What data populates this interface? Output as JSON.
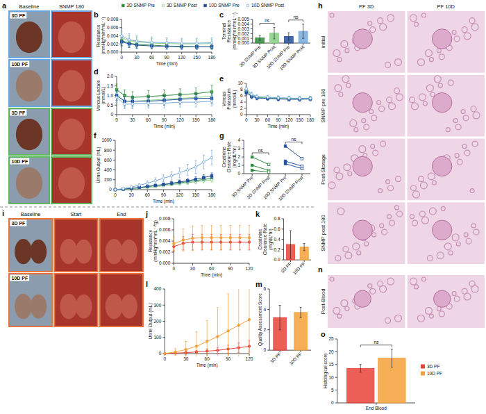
{
  "images": [
    {
      "panel_label": "a",
      "columns": [
        "Baseline",
        "SNMP 180"
      ],
      "rows": [
        "3D PF",
        "10D PF",
        "3D PF",
        "10D PF"
      ]
    },
    {
      "panel_label": "h",
      "columns": [
        "PF 3D",
        "PF 10D"
      ],
      "rows": [
        "initial",
        "SNMP pre 180",
        "Post-Storage",
        "SNMP post 180"
      ]
    },
    {
      "panel_label": "n",
      "rows": [
        "Post-Blood"
      ]
    },
    {
      "panel_label": "i",
      "columns": [
        "Baseline",
        "Start",
        "End"
      ],
      "rows": [
        "3D PF",
        "10D PF"
      ]
    }
  ],
  "chart_data": [
    {
      "panel_label": "b",
      "type": "line",
      "y_label": "Resistance (mmHg*min*mL⁻¹)",
      "x_label": "Time (min)",
      "x": [
        0,
        15,
        30,
        60,
        90,
        120,
        150,
        180
      ],
      "xlim": [
        0,
        180
      ],
      "xticks": [
        0,
        30,
        60,
        90,
        120,
        150,
        180
      ],
      "ylim": [
        0,
        0.008
      ],
      "yticks": [
        {
          "value": 0,
          "label": "0.000"
        },
        0.002,
        0.004,
        0.006,
        0.008
      ],
      "legend": "top",
      "series": [
        {
          "name": "3D SNMP Pre",
          "color": "#2e8b3e",
          "marker": "square",
          "values": [
            0.0028,
            0.0022,
            0.0019,
            0.0017,
            0.0015,
            0.0014,
            0.0013,
            0.0013
          ],
          "errors": [
            0.0012,
            0.001,
            0.0009,
            0.0008,
            0.0007,
            0.0007,
            0.0006,
            0.0006
          ]
        },
        {
          "name": "3D SNMP Post",
          "color": "#86cf86",
          "marker": "open-circle",
          "values": [
            0.0035,
            0.0028,
            0.0025,
            0.0022,
            0.0021,
            0.002,
            0.002,
            0.0021
          ],
          "errors": [
            0.0015,
            0.0013,
            0.0012,
            0.0011,
            0.0011,
            0.001,
            0.001,
            0.0011
          ]
        },
        {
          "name": "10D SNMP Pre",
          "color": "#25509e",
          "marker": "square",
          "values": [
            0.0025,
            0.002,
            0.0017,
            0.0015,
            0.0014,
            0.0013,
            0.0013,
            0.0013
          ],
          "errors": [
            0.001,
            0.0009,
            0.0008,
            0.0007,
            0.0007,
            0.0006,
            0.0006,
            0.0006
          ]
        },
        {
          "name": "10D SNMP Post",
          "color": "#76a9dd",
          "marker": "open-circle",
          "values": [
            0.004,
            0.003,
            0.0027,
            0.0024,
            0.0023,
            0.0022,
            0.0022,
            0.0023
          ],
          "errors": [
            0.0018,
            0.0015,
            0.0014,
            0.0013,
            0.0012,
            0.0012,
            0.0012,
            0.0012
          ]
        }
      ]
    },
    {
      "panel_label": "c",
      "type": "bar",
      "y_label": "Terminal Resistance (mmHg*min*mL⁻¹)",
      "categories": [
        "3D SNMP Pre",
        "3D SNMP Post",
        "10D SNMP Pre",
        "10D SNMP Post"
      ],
      "values": [
        0.0011,
        0.0021,
        0.0014,
        0.0025
      ],
      "errors": [
        0.0005,
        0.0012,
        0.0008,
        0.0015
      ],
      "colors": [
        "#2e8b3e",
        "#86cf86",
        "#25509e",
        "#76a9dd"
      ],
      "ylim": [
        0,
        0.005
      ],
      "yticks": [
        {
          "value": 0,
          "label": "0.000"
        },
        0.001,
        0.002,
        0.003,
        0.004,
        0.005
      ],
      "annotations": [
        {
          "text": "ns",
          "categories": [
            "3D SNMP Pre",
            "3D SNMP Post"
          ]
        },
        {
          "text": "ns",
          "categories": [
            "10D SNMP Pre",
            "10D SNMP Post"
          ]
        }
      ]
    },
    {
      "panel_label": "d",
      "type": "line",
      "y_label": "Venous Lactate (mmol/L)",
      "x_label": "Time (min)",
      "x": [
        0,
        15,
        30,
        60,
        90,
        120,
        150,
        180
      ],
      "xlim": [
        0,
        180
      ],
      "xticks": [
        0,
        30,
        60,
        90,
        120,
        150,
        180
      ],
      "ylim": [
        0,
        2
      ],
      "yticks": [
        0,
        0.5,
        {
          "value": 1,
          "label": "1.0"
        },
        1.5,
        {
          "value": 2,
          "label": "2.0"
        }
      ],
      "series": [
        {
          "color": "#2e8b3e",
          "marker": "square",
          "values": [
            1.3,
            1.0,
            0.9,
            0.95,
            1.0,
            1.05,
            1.1,
            1.2
          ],
          "errors": [
            0.3,
            0.3,
            0.3,
            0.3,
            0.3,
            0.3,
            0.3,
            0.35
          ]
        },
        {
          "color": "#86cf86",
          "marker": "open-circle",
          "values": [
            1.1,
            0.7,
            0.7,
            0.75,
            0.8,
            0.85,
            0.9,
            0.95
          ],
          "errors": [
            0.35,
            0.3,
            0.3,
            0.3,
            0.3,
            0.3,
            0.3,
            0.3
          ]
        },
        {
          "color": "#25509e",
          "marker": "square",
          "values": [
            1.0,
            0.7,
            0.7,
            0.7,
            0.75,
            0.8,
            0.85,
            0.85
          ],
          "errors": [
            0.25,
            0.25,
            0.25,
            0.25,
            0.25,
            0.25,
            0.25,
            0.25
          ]
        },
        {
          "color": "#76a9dd",
          "marker": "open-circle",
          "values": [
            0.9,
            0.55,
            0.55,
            0.6,
            0.6,
            0.65,
            0.65,
            0.7
          ],
          "errors": [
            0.25,
            0.25,
            0.25,
            0.25,
            0.25,
            0.25,
            0.25,
            0.25
          ]
        }
      ]
    },
    {
      "panel_label": "e",
      "type": "line",
      "y_label": "Venous Potassium (mmol/L)",
      "x_label": "Time (min)",
      "x": [
        0,
        15,
        30,
        60,
        90,
        120,
        150,
        180
      ],
      "xlim": [
        0,
        180
      ],
      "xticks": [
        0,
        30,
        60,
        90,
        120,
        150,
        180
      ],
      "ylim": [
        0,
        10
      ],
      "yticks": [
        0,
        2,
        4,
        6,
        8,
        10
      ],
      "series": [
        {
          "color": "#2e8b3e",
          "marker": "square",
          "values": [
            7.5,
            6.0,
            5.5,
            5.3,
            5.2,
            5.1,
            5.0,
            5.1
          ],
          "errors": [
            0.8,
            0.7,
            0.6,
            0.6,
            0.6,
            0.6,
            0.6,
            0.6
          ]
        },
        {
          "color": "#86cf86",
          "marker": "open-circle",
          "values": [
            8.0,
            6.2,
            5.6,
            5.4,
            5.3,
            5.2,
            5.2,
            5.3
          ],
          "errors": [
            0.8,
            0.7,
            0.6,
            0.6,
            0.6,
            0.6,
            0.6,
            0.6
          ]
        },
        {
          "color": "#25509e",
          "marker": "square",
          "values": [
            7.0,
            5.8,
            5.3,
            5.2,
            5.0,
            4.9,
            4.9,
            5.0
          ],
          "errors": [
            0.8,
            0.7,
            0.6,
            0.6,
            0.6,
            0.6,
            0.6,
            0.6
          ]
        },
        {
          "color": "#76a9dd",
          "marker": "open-circle",
          "values": [
            8.3,
            6.5,
            5.8,
            5.6,
            5.4,
            5.3,
            5.2,
            5.2
          ],
          "errors": [
            0.8,
            0.7,
            0.6,
            0.6,
            0.6,
            0.6,
            0.6,
            0.6
          ]
        }
      ]
    },
    {
      "panel_label": "f",
      "type": "line",
      "y_label": "Urine Output (mL)",
      "x_label": "Time (min)",
      "x": [
        0,
        15,
        30,
        45,
        60,
        75,
        90,
        105,
        120,
        135,
        150,
        165,
        180
      ],
      "xlim": [
        0,
        180
      ],
      "xticks": [
        0,
        30,
        60,
        90,
        120,
        150,
        180
      ],
      "ylim": [
        0,
        1000
      ],
      "yticks": [
        0,
        200,
        400,
        600,
        800,
        1000
      ],
      "series": [
        {
          "color": "#2e8b3e",
          "marker": "square",
          "values": [
            0,
            10,
            25,
            40,
            60,
            80,
            100,
            120,
            140,
            160,
            185,
            205,
            230
          ],
          "errors": [
            0,
            5,
            8,
            12,
            16,
            20,
            24,
            28,
            32,
            36,
            40,
            44,
            48
          ]
        },
        {
          "color": "#86cf86",
          "marker": "open-circle",
          "values": [
            0,
            8,
            18,
            30,
            45,
            60,
            80,
            100,
            120,
            140,
            160,
            180,
            200
          ],
          "errors": [
            0,
            4,
            7,
            10,
            14,
            18,
            22,
            26,
            30,
            34,
            38,
            42,
            46
          ]
        },
        {
          "color": "#25509e",
          "marker": "square",
          "values": [
            0,
            10,
            25,
            45,
            65,
            85,
            105,
            130,
            155,
            180,
            210,
            245,
            280
          ],
          "errors": [
            0,
            6,
            10,
            15,
            20,
            25,
            30,
            35,
            40,
            45,
            50,
            55,
            60
          ]
        },
        {
          "color": "#76a9dd",
          "marker": "open-circle",
          "values": [
            0,
            20,
            50,
            90,
            130,
            180,
            230,
            280,
            340,
            400,
            460,
            560,
            650
          ],
          "errors": [
            0,
            10,
            20,
            30,
            45,
            60,
            70,
            85,
            100,
            115,
            130,
            140,
            150
          ]
        }
      ]
    },
    {
      "panel_label": "g",
      "type": "line",
      "y_label": "Creatinine Clearance Rate (mg/dL*hr)",
      "categories": [
        "3D SNMP Pre",
        "3D SNMP Post",
        "10D SNMP Pre",
        "10D SNMP Post"
      ],
      "ylim": [
        0,
        4
      ],
      "yticks": [
        0,
        1,
        2,
        3,
        4
      ],
      "series": [
        {
          "color": "#2e8b3e",
          "marker": "square",
          "values": [
            2.0,
            1.1,
            null,
            null
          ]
        },
        {
          "color": "#2e8b3e",
          "marker": "square",
          "values": [
            1.0,
            0.4,
            null,
            null
          ]
        },
        {
          "color": "#2e8b3e",
          "marker": "square",
          "values": [
            0.4,
            0.2,
            null,
            null
          ]
        },
        {
          "color": "#25509e",
          "marker": "square",
          "values": [
            null,
            null,
            3.3,
            1.8
          ]
        },
        {
          "color": "#25509e",
          "marker": "square",
          "values": [
            null,
            null,
            1.5,
            0.9
          ]
        },
        {
          "color": "#25509e",
          "marker": "square",
          "values": [
            null,
            null,
            1.2,
            0.6
          ]
        }
      ],
      "annotations": [
        {
          "text": "ns",
          "categories": [
            "3D SNMP Pre",
            "3D SNMP Post"
          ]
        },
        {
          "text": "ns",
          "categories": [
            "10D SNMP Pre",
            "10D SNMP Post"
          ]
        }
      ]
    },
    {
      "panel_label": "j",
      "type": "line",
      "y_label": "Resistance (mmHg*min*mL⁻¹*g)",
      "x_label": "Time (min)",
      "x": [
        0,
        15,
        30,
        45,
        60,
        75,
        90,
        105,
        120
      ],
      "xlim": [
        0,
        120
      ],
      "xticks": [
        0,
        30,
        60,
        90,
        120
      ],
      "ylim": [
        0,
        0.008
      ],
      "yticks": [
        {
          "value": 0,
          "label": "0.000"
        },
        0.002,
        0.004,
        0.006,
        0.008
      ],
      "series": [
        {
          "color": "#e8433a",
          "marker": "circle",
          "values": [
            0.003,
            0.0036,
            0.0038,
            0.0038,
            0.0038,
            0.0038,
            0.0038,
            0.0038,
            0.0038
          ],
          "errors": [
            0.0008,
            0.0012,
            0.0014,
            0.0014,
            0.0014,
            0.0014,
            0.0014,
            0.0014,
            0.0014
          ]
        },
        {
          "color": "#f4a13a",
          "marker": "circle",
          "values": [
            0.0035,
            0.0042,
            0.0045,
            0.0046,
            0.0046,
            0.0046,
            0.0046,
            0.0046,
            0.0046
          ],
          "errors": [
            0.0012,
            0.002,
            0.0022,
            0.0022,
            0.0022,
            0.0022,
            0.0022,
            0.0022,
            0.0022
          ]
        }
      ]
    },
    {
      "panel_label": "k",
      "type": "bar",
      "y_label": "Creatinine Clearance Rate (mg/dL*hr)",
      "categories": [
        "3D PF",
        "10D PF"
      ],
      "values": [
        0.3,
        0.25
      ],
      "errors": [
        0.27,
        0.07
      ],
      "colors": [
        "#e8433a",
        "#f4a13a"
      ],
      "ylim": [
        0,
        0.8
      ],
      "yticks": [
        {
          "value": 0,
          "label": "0.0"
        },
        0.2,
        0.4,
        0.6,
        0.8
      ]
    },
    {
      "panel_label": "l",
      "type": "line",
      "y_label": "Urine Output (mL)",
      "x_label": "Time (min)",
      "x": [
        0,
        15,
        30,
        45,
        60,
        75,
        90,
        105,
        120
      ],
      "xlim": [
        0,
        120
      ],
      "xticks": [
        0,
        30,
        60,
        90,
        120
      ],
      "ylim": [
        0,
        400
      ],
      "yticks": [
        0,
        100,
        200,
        300,
        400
      ],
      "series": [
        {
          "color": "#e8433a",
          "marker": "circle",
          "values": [
            0,
            3,
            6,
            10,
            15,
            20,
            28,
            36,
            45
          ],
          "errors": [
            0,
            3,
            6,
            10,
            14,
            18,
            24,
            30,
            36
          ]
        },
        {
          "color": "#f4a13a",
          "marker": "circle",
          "values": [
            0,
            10,
            25,
            45,
            75,
            105,
            140,
            175,
            210
          ],
          "errors": [
            0,
            20,
            50,
            90,
            130,
            180,
            230,
            290,
            350
          ]
        }
      ]
    },
    {
      "panel_label": "m",
      "type": "bar",
      "y_label": "Quality Assessment Score",
      "categories": [
        "3D PF",
        "10D PF"
      ],
      "values": [
        3.2,
        3.7
      ],
      "errors": [
        1.2,
        0.5
      ],
      "colors": [
        "#e8433a",
        "#f4a13a"
      ],
      "ylim": [
        0,
        6
      ],
      "yticks": [
        0,
        2,
        4,
        6
      ]
    },
    {
      "panel_label": "o",
      "type": "bar",
      "y_label": "Histological score",
      "categories": [
        "End Blood"
      ],
      "ylim": [
        0,
        25
      ],
      "yticks": [
        0,
        5,
        10,
        15,
        20,
        25
      ],
      "legend": "right",
      "series": [
        {
          "name": "3D PF",
          "color": "#e8433a",
          "values": [
            13.5
          ],
          "errors": [
            1.5
          ]
        },
        {
          "name": "10D PF",
          "color": "#f4a13a",
          "values": [
            17.5
          ],
          "errors": [
            3.5
          ]
        }
      ],
      "annotations": [
        {
          "text": "ns",
          "series": [
            "3D PF",
            "10D PF"
          ]
        }
      ]
    }
  ]
}
